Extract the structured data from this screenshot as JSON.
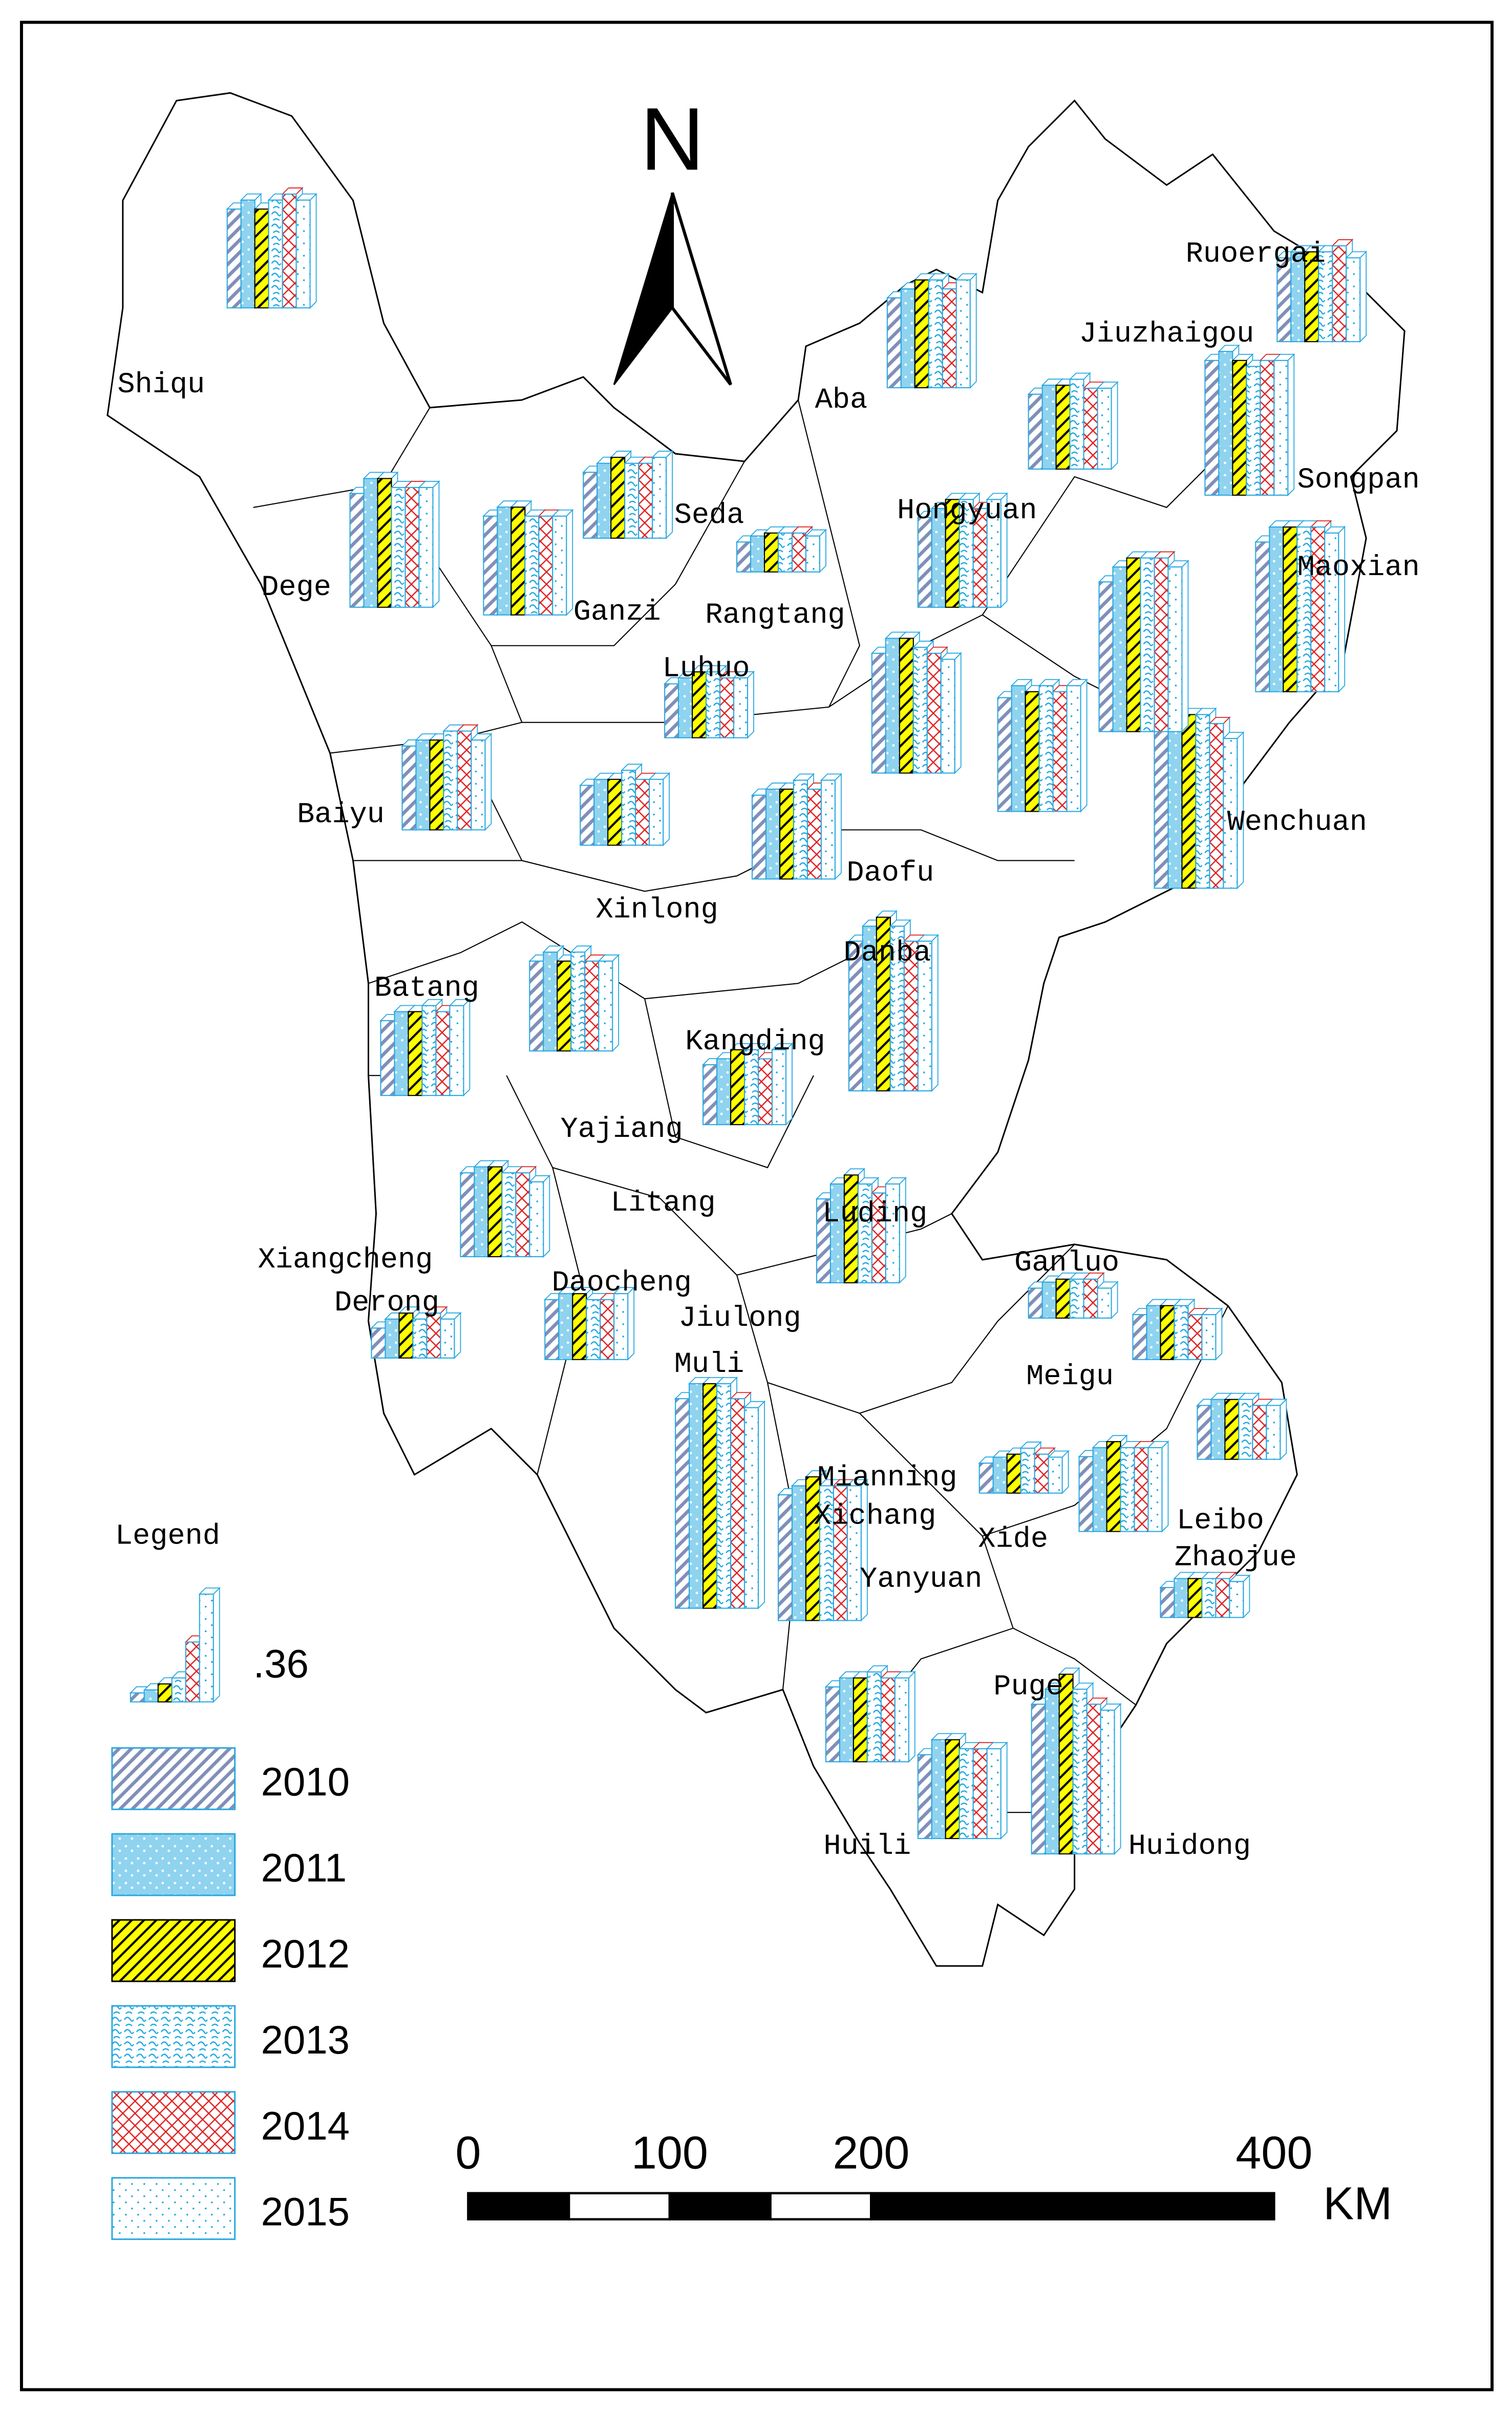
{
  "north_label": "N",
  "years": [
    {
      "label": "2010",
      "color": "#7f8fb8"
    },
    {
      "label": "2011",
      "color": "#8fd3ef"
    },
    {
      "label": "2012",
      "color": "#ffff00"
    },
    {
      "label": "2013",
      "color": "#1aa7e0"
    },
    {
      "label": "2014",
      "color": "#e02020"
    },
    {
      "label": "2015",
      "color": "#1aa7e0"
    }
  ],
  "legend": {
    "title": "Legend",
    "sample": {
      "values": [
        0.03,
        0.04,
        0.06,
        0.08,
        0.2,
        0.36
      ],
      "value_label": ".36"
    }
  },
  "scale_bar": {
    "ticks": [
      0,
      100,
      200,
      400
    ],
    "divisions": [
      0,
      50,
      100,
      150,
      200,
      400
    ],
    "unit": "KM"
  },
  "counties": [
    {
      "name": "Shiqu",
      "values": [
        0.33,
        0.36,
        0.33,
        0.36,
        0.38,
        0.36
      ]
    },
    {
      "name": "Dege",
      "values": [
        0.38,
        0.43,
        0.43,
        0.4,
        0.4,
        0.4
      ]
    },
    {
      "name": "Ganzi",
      "values": [
        0.33,
        0.36,
        0.36,
        0.33,
        0.33,
        0.33
      ]
    },
    {
      "name": "Seda",
      "values": [
        0.22,
        0.25,
        0.27,
        0.25,
        0.25,
        0.27
      ]
    },
    {
      "name": "Rangtang",
      "values": [
        0.1,
        0.12,
        0.13,
        0.13,
        0.13,
        0.12
      ]
    },
    {
      "name": "Aba",
      "values": [
        0.3,
        0.33,
        0.36,
        0.36,
        0.33,
        0.36
      ]
    },
    {
      "name": "Hongyuan",
      "values": [
        0.3,
        0.33,
        0.36,
        0.36,
        0.33,
        0.36
      ]
    },
    {
      "name": "Ruoergai",
      "values": [
        0.28,
        0.3,
        0.3,
        0.3,
        0.32,
        0.28
      ]
    },
    {
      "name": "Jiuzhaigou",
      "values": [
        0.25,
        0.28,
        0.28,
        0.3,
        0.27,
        0.27
      ]
    },
    {
      "name": "Songpan",
      "values": [
        0.45,
        0.48,
        0.45,
        0.43,
        0.45,
        0.45
      ]
    },
    {
      "name": "Maoxian",
      "values": [
        0.5,
        0.55,
        0.55,
        0.55,
        0.55,
        0.53
      ]
    },
    {
      "name": "Luhuo",
      "values": [
        0.18,
        0.2,
        0.22,
        0.22,
        0.2,
        0.2
      ]
    },
    {
      "name": "Baiyu",
      "values": [
        0.28,
        0.3,
        0.3,
        0.33,
        0.33,
        0.3
      ]
    },
    {
      "name": "Wenchuan",
      "values": [
        0.55,
        0.58,
        0.58,
        0.58,
        0.55,
        0.5
      ]
    },
    {
      "name": "Daofu",
      "values": [
        0.28,
        0.3,
        0.3,
        0.33,
        0.3,
        0.33
      ]
    },
    {
      "name": "Xinlong",
      "values": [
        0.2,
        0.22,
        0.22,
        0.25,
        0.22,
        0.22
      ]
    },
    {
      "name": "Danba",
      "values": [
        0.5,
        0.55,
        0.58,
        0.55,
        0.5,
        0.5
      ]
    },
    {
      "name": "Batang",
      "values": [
        0.25,
        0.28,
        0.28,
        0.3,
        0.28,
        0.3
      ]
    },
    {
      "name": "Kangding",
      "values": [
        0.2,
        0.22,
        0.25,
        0.25,
        0.22,
        0.25
      ]
    },
    {
      "name": "Yajiang",
      "values": [
        0.3,
        0.33,
        0.3,
        0.33,
        0.3,
        0.3
      ]
    },
    {
      "name": "Litang",
      "values": [
        0.28,
        0.3,
        0.3,
        0.28,
        0.28,
        0.25
      ]
    },
    {
      "name": "Luding",
      "values": [
        0.28,
        0.33,
        0.36,
        0.33,
        0.3,
        0.33
      ]
    },
    {
      "name": "Xiangcheng",
      "values": [
        0.4,
        0.45,
        0.45,
        0.42,
        0.4,
        0.38
      ]
    },
    {
      "name": "Ganluo",
      "values": [
        0.1,
        0.12,
        0.13,
        0.13,
        0.13,
        0.1
      ]
    },
    {
      "name": "Derong",
      "values": [
        0.1,
        0.13,
        0.15,
        0.13,
        0.15,
        0.13
      ]
    },
    {
      "name": "Daocheng",
      "values": [
        0.2,
        0.22,
        0.22,
        0.2,
        0.2,
        0.22
      ]
    },
    {
      "name": "Jiulong",
      "values": [
        0.38,
        0.42,
        0.4,
        0.42,
        0.4,
        0.42
      ]
    },
    {
      "name": "Muli",
      "values": [
        0.7,
        0.75,
        0.75,
        0.75,
        0.7,
        0.67
      ]
    },
    {
      "name": "Meigu",
      "values": [
        0.15,
        0.18,
        0.18,
        0.18,
        0.15,
        0.15
      ]
    },
    {
      "name": "Mianning",
      "values": [
        0.1,
        0.12,
        0.13,
        0.15,
        0.13,
        0.12
      ]
    },
    {
      "name": "Xichang",
      "values": [
        0.42,
        0.45,
        0.48,
        0.45,
        0.45,
        0.45
      ]
    },
    {
      "name": "Xide",
      "values": [
        0.25,
        0.28,
        0.3,
        0.28,
        0.28,
        0.28
      ]
    },
    {
      "name": "Leibo",
      "values": [
        0.18,
        0.2,
        0.2,
        0.2,
        0.18,
        0.18
      ]
    },
    {
      "name": "Zhaojue",
      "values": [
        0.1,
        0.13,
        0.13,
        0.13,
        0.13,
        0.12
      ]
    },
    {
      "name": "Yanyuan",
      "values": [
        0.25,
        0.28,
        0.28,
        0.3,
        0.28,
        0.28
      ]
    },
    {
      "name": "Puge",
      "values": [
        0.28,
        0.33,
        0.33,
        0.3,
        0.3,
        0.3
      ]
    },
    {
      "name": "Huili",
      "values": [
        0.5,
        0.55,
        0.58,
        0.58,
        0.58,
        0.55
      ]
    },
    {
      "name": "Huidong",
      "values": [
        0.5,
        0.55,
        0.6,
        0.55,
        0.5,
        0.48
      ]
    }
  ]
}
